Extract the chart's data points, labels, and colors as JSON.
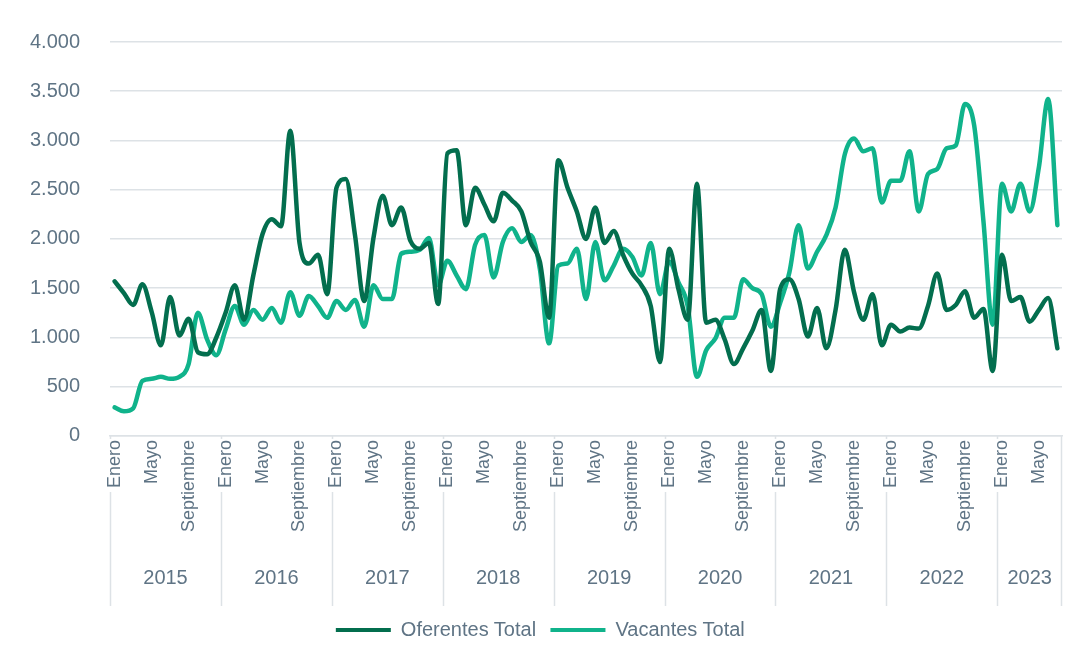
{
  "chart_data": {
    "type": "line",
    "categories": [
      "Enero",
      null,
      null,
      null,
      "Mayo",
      null,
      null,
      null,
      "Septiembre",
      null,
      null,
      null,
      "Enero",
      null,
      null,
      null,
      "Mayo",
      null,
      null,
      null,
      "Septiembre",
      null,
      null,
      null,
      "Enero",
      null,
      null,
      null,
      "Mayo",
      null,
      null,
      null,
      "Septiembre",
      null,
      null,
      null,
      "Enero",
      null,
      null,
      null,
      "Mayo",
      null,
      null,
      null,
      "Septiembre",
      null,
      null,
      null,
      "Enero",
      null,
      null,
      null,
      "Mayo",
      null,
      null,
      null,
      "Septiembre",
      null,
      null,
      null,
      "Enero",
      null,
      null,
      null,
      "Mayo",
      null,
      null,
      null,
      "Septiembre",
      null,
      null,
      null,
      "Enero",
      null,
      null,
      null,
      "Mayo",
      null,
      null,
      null,
      "Septiembre",
      null,
      null,
      null,
      "Enero",
      null,
      null,
      null,
      "Mayo",
      null,
      null,
      null,
      "Septiembre",
      null,
      null,
      null,
      "Enero",
      null,
      null,
      null,
      "Mayo",
      null,
      null
    ],
    "annotations": [
      "2015",
      "2016",
      "2017",
      "2018",
      "2019",
      "2020",
      "2021",
      "2022",
      "2023"
    ],
    "series": [
      {
        "name": "Oferentes Total",
        "color": "#036e4e",
        "values": [
          1570,
          1450,
          1330,
          1540,
          1260,
          920,
          1410,
          1020,
          1190,
          850,
          830,
          1000,
          1250,
          1530,
          1180,
          1630,
          2050,
          2200,
          2130,
          3100,
          1960,
          1750,
          1840,
          1440,
          2520,
          2610,
          2040,
          1370,
          2010,
          2440,
          2140,
          2320,
          1980,
          1900,
          1960,
          1340,
          2870,
          2900,
          2140,
          2520,
          2350,
          2180,
          2470,
          2390,
          2280,
          1970,
          1770,
          1200,
          2800,
          2520,
          2280,
          2000,
          2320,
          1960,
          2080,
          1840,
          1650,
          1530,
          1320,
          750,
          1900,
          1490,
          1180,
          2560,
          1150,
          1180,
          980,
          730,
          890,
          1070,
          1280,
          660,
          1490,
          1590,
          1390,
          1010,
          1300,
          890,
          1280,
          1890,
          1460,
          1180,
          1440,
          920,
          1130,
          1060,
          1100,
          1090,
          1320,
          1650,
          1280,
          1330,
          1470,
          1200,
          1290,
          660,
          1840,
          1370,
          1410,
          1160,
          1280,
          1400,
          890
        ]
      },
      {
        "name": "Vacantes Total",
        "color": "#10b38b",
        "values": [
          290,
          250,
          280,
          560,
          580,
          600,
          580,
          600,
          730,
          1250,
          980,
          820,
          1080,
          1320,
          1130,
          1280,
          1180,
          1300,
          1150,
          1460,
          1220,
          1420,
          1320,
          1200,
          1370,
          1280,
          1380,
          1110,
          1530,
          1390,
          1390,
          1850,
          1870,
          1890,
          2010,
          1530,
          1780,
          1630,
          1490,
          1940,
          2040,
          1610,
          1970,
          2110,
          1970,
          2040,
          1700,
          940,
          1730,
          1750,
          1900,
          1390,
          1970,
          1580,
          1730,
          1900,
          1820,
          1630,
          1960,
          1440,
          1770,
          1560,
          1320,
          600,
          870,
          990,
          1200,
          1200,
          1590,
          1500,
          1440,
          1110,
          1350,
          1660,
          2140,
          1700,
          1870,
          2040,
          2320,
          2860,
          3020,
          2890,
          2920,
          2370,
          2590,
          2590,
          2890,
          2280,
          2660,
          2710,
          2920,
          2950,
          3370,
          3150,
          2180,
          1130,
          2560,
          2280,
          2560,
          2280,
          2730,
          3420,
          2140
        ]
      }
    ],
    "ylim": [
      0,
      4000
    ],
    "yticks": [
      {
        "value": 0,
        "label": "0"
      },
      {
        "value": 500,
        "label": "500"
      },
      {
        "value": 1000,
        "label": "1.000"
      },
      {
        "value": 1500,
        "label": "1.500"
      },
      {
        "value": 2000,
        "label": "2.000"
      },
      {
        "value": 2500,
        "label": "2.500"
      },
      {
        "value": 3000,
        "label": "3.000"
      },
      {
        "value": 3500,
        "label": "3.500"
      },
      {
        "value": 4000,
        "label": "4.000"
      }
    ],
    "grid": "y",
    "legend": "bottom",
    "marker": "none",
    "line_style": "solid"
  }
}
